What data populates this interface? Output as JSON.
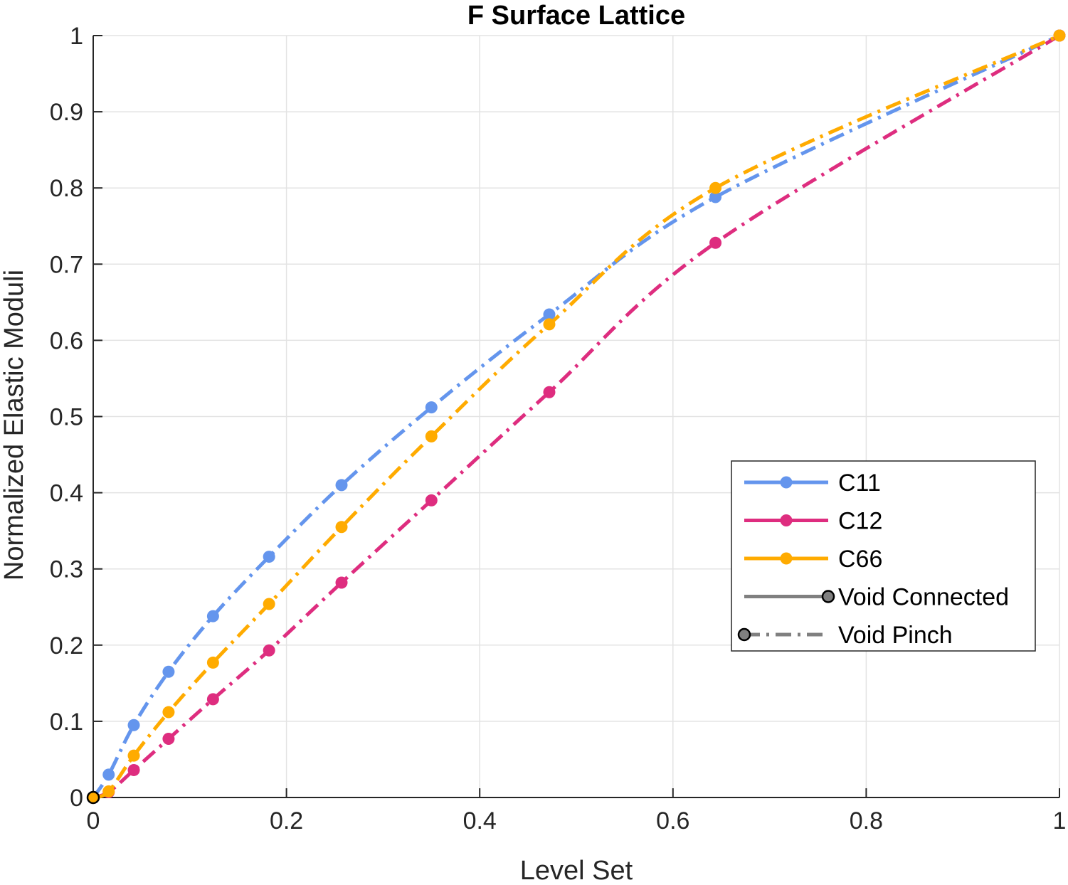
{
  "chart_data": {
    "type": "line",
    "title": "F Surface Lattice",
    "xlabel": "Level Set",
    "ylabel": "Normalized Elastic Moduli",
    "xlim": [
      0,
      1
    ],
    "ylim": [
      0,
      1
    ],
    "xticks": [
      0,
      0.2,
      0.4,
      0.6,
      0.8,
      1
    ],
    "xtick_labels": [
      "0",
      "0.2",
      "0.4",
      "0.6",
      "0.8",
      "1"
    ],
    "yticks": [
      0,
      0.1,
      0.2,
      0.3,
      0.4,
      0.5,
      0.6,
      0.7,
      0.8,
      0.9,
      1
    ],
    "ytick_labels": [
      "0",
      "0.1",
      "0.2",
      "0.3",
      "0.4",
      "0.5",
      "0.6",
      "0.7",
      "0.8",
      "0.9",
      "1"
    ],
    "grid": true,
    "legend_position": "lower-right",
    "series": [
      {
        "name": "C11",
        "color": "#6495ED",
        "x": [
          0,
          0.016,
          0.042,
          0.078,
          0.124,
          0.182,
          0.257,
          0.35,
          0.472,
          0.644,
          1.0
        ],
        "y": [
          0,
          0.03,
          0.095,
          0.165,
          0.238,
          0.316,
          0.41,
          0.512,
          0.634,
          0.788,
          1.0
        ]
      },
      {
        "name": "C12",
        "color": "#DE2D7F",
        "x": [
          0,
          0.016,
          0.042,
          0.078,
          0.124,
          0.182,
          0.257,
          0.35,
          0.472,
          0.644,
          1.0
        ],
        "y": [
          0,
          0.007,
          0.036,
          0.077,
          0.129,
          0.193,
          0.282,
          0.39,
          0.532,
          0.728,
          1.0
        ]
      },
      {
        "name": "C66",
        "color": "#FFAB00",
        "x": [
          0,
          0.016,
          0.042,
          0.078,
          0.124,
          0.182,
          0.257,
          0.35,
          0.472,
          0.644,
          1.0
        ],
        "y": [
          0,
          0.008,
          0.055,
          0.112,
          0.177,
          0.254,
          0.355,
          0.474,
          0.621,
          0.8,
          1.0
        ]
      }
    ],
    "legend": [
      {
        "label": "C11",
        "kind": "series",
        "color": "#6495ED"
      },
      {
        "label": "C12",
        "kind": "series",
        "color": "#DE2D7F"
      },
      {
        "label": "C66",
        "kind": "series",
        "color": "#FFAB00"
      },
      {
        "label": "Void Connected",
        "kind": "style-solid",
        "color": "#808080"
      },
      {
        "label": "Void Pinch",
        "kind": "style-dashdot",
        "color": "#808080"
      }
    ]
  }
}
